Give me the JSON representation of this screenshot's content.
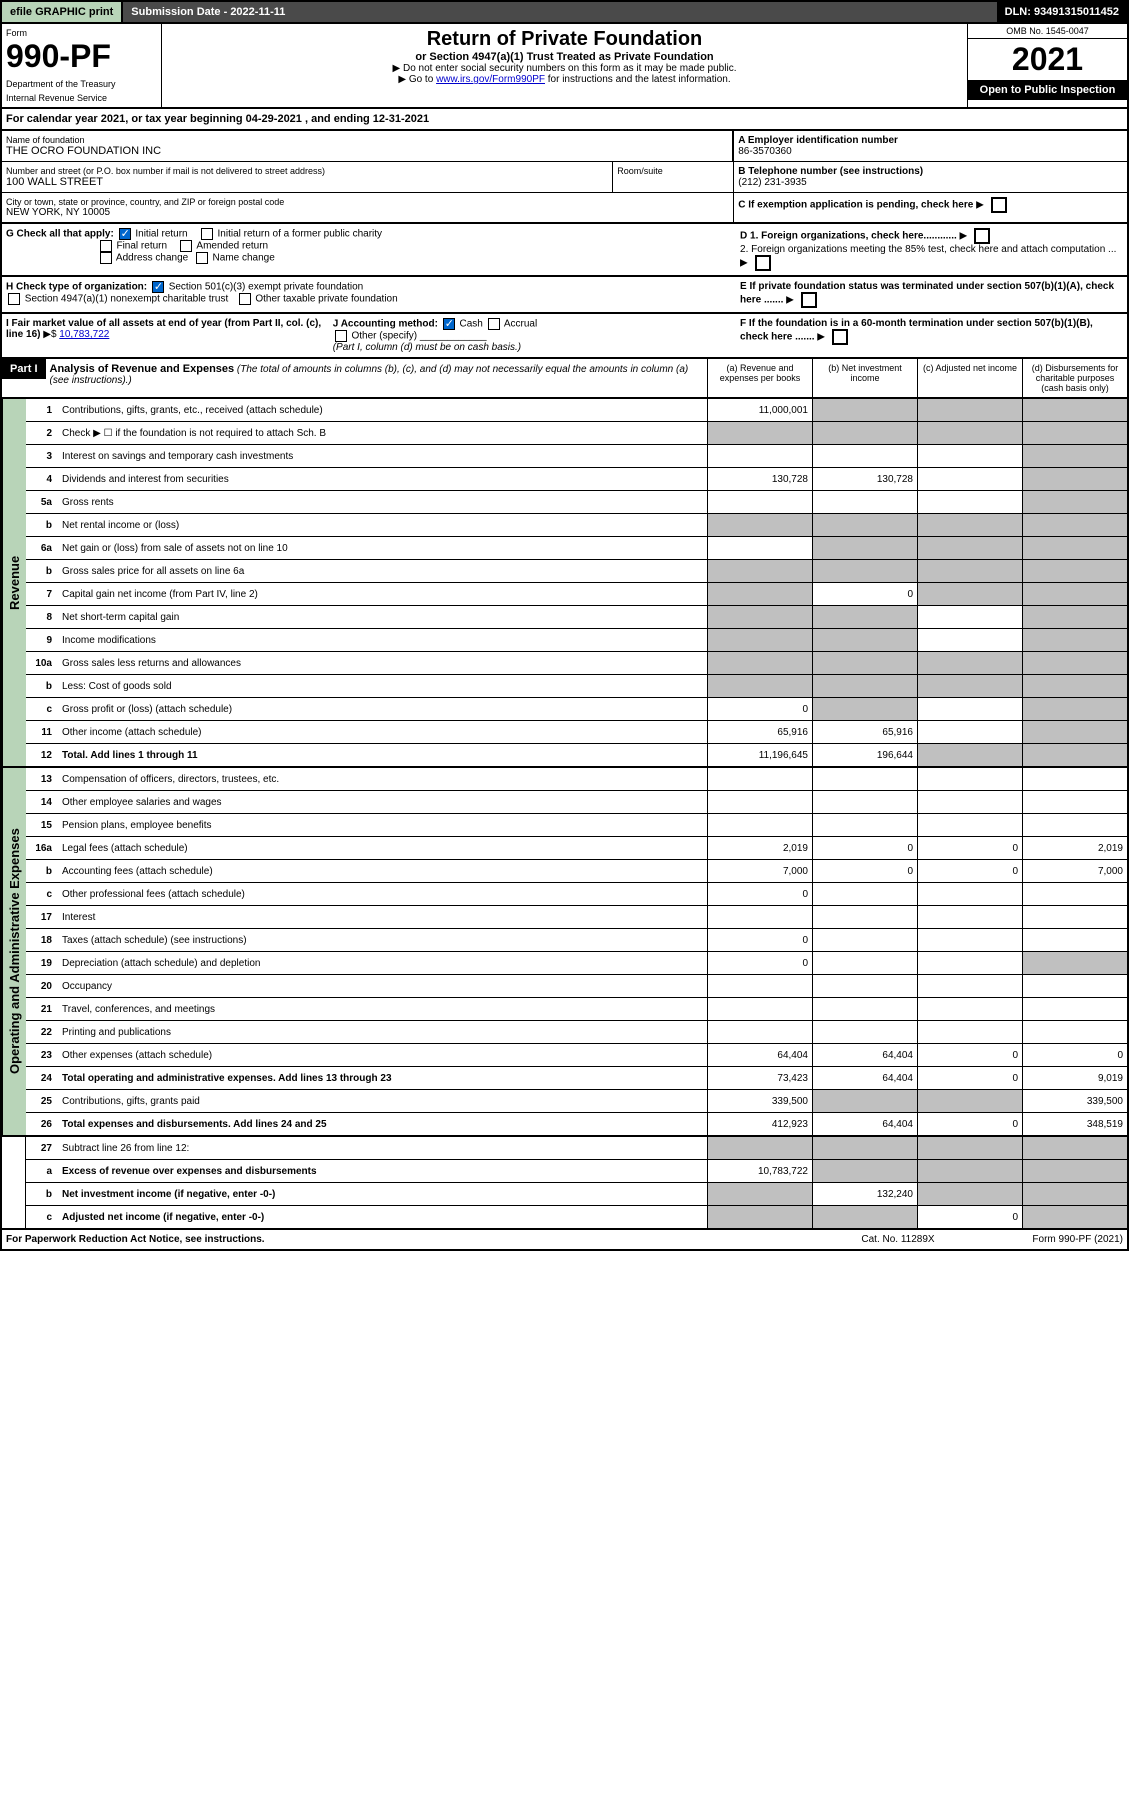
{
  "top": {
    "efile": "efile GRAPHIC print",
    "submission": "Submission Date - 2022-11-11",
    "dln": "DLN: 93491315011452"
  },
  "header": {
    "form_label": "Form",
    "form_number": "990-PF",
    "dept": "Department of the Treasury",
    "irs": "Internal Revenue Service",
    "title": "Return of Private Foundation",
    "subtitle": "or Section 4947(a)(1) Trust Treated as Private Foundation",
    "note1": "▶ Do not enter social security numbers on this form as it may be made public.",
    "note2_pre": "▶ Go to ",
    "note2_link": "www.irs.gov/Form990PF",
    "note2_post": " for instructions and the latest information.",
    "omb": "OMB No. 1545-0047",
    "year": "2021",
    "open": "Open to Public Inspection"
  },
  "cal_year": "For calendar year 2021, or tax year beginning 04-29-2021                              , and ending 12-31-2021",
  "info": {
    "name_label": "Name of foundation",
    "name": "THE OCRO FOUNDATION INC",
    "addr_label": "Number and street (or P.O. box number if mail is not delivered to street address)",
    "addr": "100 WALL STREET",
    "room_label": "Room/suite",
    "city_label": "City or town, state or province, country, and ZIP or foreign postal code",
    "city": "NEW YORK, NY  10005",
    "ein_label": "A Employer identification number",
    "ein": "86-3570360",
    "phone_label": "B Telephone number (see instructions)",
    "phone": "(212) 231-3935",
    "c_label": "C If exemption application is pending, check here",
    "d1": "D 1. Foreign organizations, check here............",
    "d2": "2. Foreign organizations meeting the 85% test, check here and attach computation ...",
    "e_label": "E  If private foundation status was terminated under section 507(b)(1)(A), check here .......",
    "f_label": "F  If the foundation is in a 60-month termination under section 507(b)(1)(B), check here .......",
    "g_label": "G Check all that apply:",
    "g_initial": "Initial return",
    "g_initial_former": "Initial return of a former public charity",
    "g_final": "Final return",
    "g_amended": "Amended return",
    "g_addr": "Address change",
    "g_name": "Name change",
    "h_label": "H Check type of organization:",
    "h_501": "Section 501(c)(3) exempt private foundation",
    "h_4947": "Section 4947(a)(1) nonexempt charitable trust",
    "h_other": "Other taxable private foundation",
    "i_label": "I Fair market value of all assets at end of year (from Part II, col. (c), line 16)",
    "i_value": "10,783,722",
    "j_label": "J Accounting method:",
    "j_cash": "Cash",
    "j_accrual": "Accrual",
    "j_other": "Other (specify)",
    "j_note": "(Part I, column (d) must be on cash basis.)"
  },
  "part1": {
    "label": "Part I",
    "title": "Analysis of Revenue and Expenses",
    "desc": " (The total of amounts in columns (b), (c), and (d) may not necessarily equal the amounts in column (a) (see instructions).)",
    "col_a": "(a)   Revenue and expenses per books",
    "col_b": "(b)   Net investment income",
    "col_c": "(c)   Adjusted net income",
    "col_d": "(d)   Disbursements for charitable purposes (cash basis only)"
  },
  "side": {
    "revenue": "Revenue",
    "expenses": "Operating and Administrative Expenses"
  },
  "rows": {
    "r1": {
      "n": "1",
      "d": "Contributions, gifts, grants, etc., received (attach schedule)",
      "a": "11,000,001"
    },
    "r2": {
      "n": "2",
      "d": "Check ▶ ☐ if the foundation is not required to attach Sch. B"
    },
    "r3": {
      "n": "3",
      "d": "Interest on savings and temporary cash investments"
    },
    "r4": {
      "n": "4",
      "d": "Dividends and interest from securities",
      "a": "130,728",
      "b": "130,728"
    },
    "r5a": {
      "n": "5a",
      "d": "Gross rents"
    },
    "r5b": {
      "n": "b",
      "d": "Net rental income or (loss)"
    },
    "r6a": {
      "n": "6a",
      "d": "Net gain or (loss) from sale of assets not on line 10"
    },
    "r6b": {
      "n": "b",
      "d": "Gross sales price for all assets on line 6a"
    },
    "r7": {
      "n": "7",
      "d": "Capital gain net income (from Part IV, line 2)",
      "b": "0"
    },
    "r8": {
      "n": "8",
      "d": "Net short-term capital gain"
    },
    "r9": {
      "n": "9",
      "d": "Income modifications"
    },
    "r10a": {
      "n": "10a",
      "d": "Gross sales less returns and allowances"
    },
    "r10b": {
      "n": "b",
      "d": "Less: Cost of goods sold"
    },
    "r10c": {
      "n": "c",
      "d": "Gross profit or (loss) (attach schedule)",
      "a": "0"
    },
    "r11": {
      "n": "11",
      "d": "Other income (attach schedule)",
      "a": "65,916",
      "b": "65,916"
    },
    "r12": {
      "n": "12",
      "d": "Total. Add lines 1 through 11",
      "a": "11,196,645",
      "b": "196,644"
    },
    "r13": {
      "n": "13",
      "d": "Compensation of officers, directors, trustees, etc."
    },
    "r14": {
      "n": "14",
      "d": "Other employee salaries and wages"
    },
    "r15": {
      "n": "15",
      "d": "Pension plans, employee benefits"
    },
    "r16a": {
      "n": "16a",
      "d": "Legal fees (attach schedule)",
      "a": "2,019",
      "b": "0",
      "c": "0",
      "dd": "2,019"
    },
    "r16b": {
      "n": "b",
      "d": "Accounting fees (attach schedule)",
      "a": "7,000",
      "b": "0",
      "c": "0",
      "dd": "7,000"
    },
    "r16c": {
      "n": "c",
      "d": "Other professional fees (attach schedule)",
      "a": "0"
    },
    "r17": {
      "n": "17",
      "d": "Interest"
    },
    "r18": {
      "n": "18",
      "d": "Taxes (attach schedule) (see instructions)",
      "a": "0"
    },
    "r19": {
      "n": "19",
      "d": "Depreciation (attach schedule) and depletion",
      "a": "0"
    },
    "r20": {
      "n": "20",
      "d": "Occupancy"
    },
    "r21": {
      "n": "21",
      "d": "Travel, conferences, and meetings"
    },
    "r22": {
      "n": "22",
      "d": "Printing and publications"
    },
    "r23": {
      "n": "23",
      "d": "Other expenses (attach schedule)",
      "a": "64,404",
      "b": "64,404",
      "c": "0",
      "dd": "0"
    },
    "r24": {
      "n": "24",
      "d": "Total operating and administrative expenses. Add lines 13 through 23",
      "a": "73,423",
      "b": "64,404",
      "c": "0",
      "dd": "9,019"
    },
    "r25": {
      "n": "25",
      "d": "Contributions, gifts, grants paid",
      "a": "339,500",
      "dd": "339,500"
    },
    "r26": {
      "n": "26",
      "d": "Total expenses and disbursements. Add lines 24 and 25",
      "a": "412,923",
      "b": "64,404",
      "c": "0",
      "dd": "348,519"
    },
    "r27": {
      "n": "27",
      "d": "Subtract line 26 from line 12:"
    },
    "r27a": {
      "n": "a",
      "d": "Excess of revenue over expenses and disbursements",
      "a": "10,783,722"
    },
    "r27b": {
      "n": "b",
      "d": "Net investment income (if negative, enter -0-)",
      "b": "132,240"
    },
    "r27c": {
      "n": "c",
      "d": "Adjusted net income (if negative, enter -0-)",
      "c": "0"
    }
  },
  "footer": {
    "left": "For Paperwork Reduction Act Notice, see instructions.",
    "mid": "Cat. No. 11289X",
    "right": "Form 990-PF (2021)"
  }
}
